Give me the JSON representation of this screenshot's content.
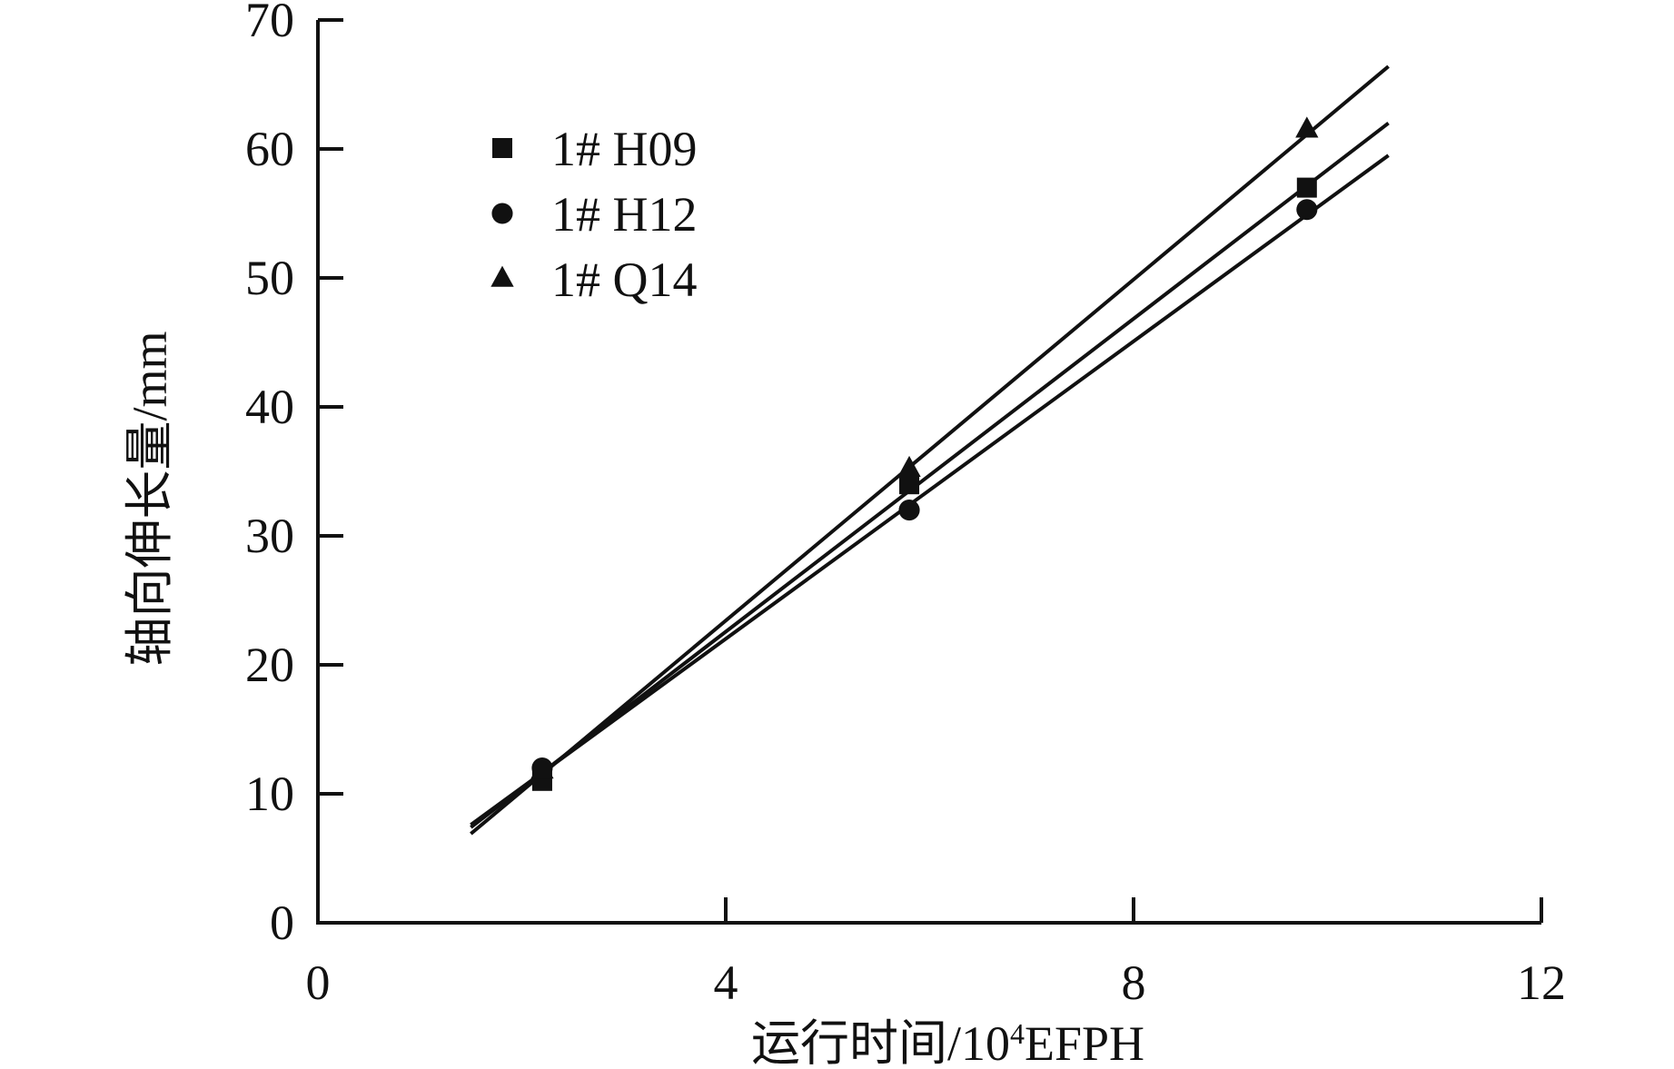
{
  "chart_data": {
    "type": "scatter",
    "xlabel": "运行时间/10",
    "xlabel_sup": "4",
    "xlabel_suffix": "EFPH",
    "ylabel": "轴向伸长量/mm",
    "xlim": [
      0,
      12
    ],
    "ylim": [
      0,
      70
    ],
    "x_ticks": [
      0,
      4,
      8,
      12
    ],
    "y_ticks": [
      0,
      10,
      20,
      30,
      40,
      50,
      60,
      70
    ],
    "x_tick_labels": [
      "0",
      "4",
      "8",
      "12"
    ],
    "y_tick_labels": [
      "0",
      "10",
      "20",
      "30",
      "40",
      "50",
      "60",
      "70"
    ],
    "grid": false,
    "legend_position": "top-left",
    "series": [
      {
        "name": "1# H09",
        "marker": "square",
        "x": [
          2.2,
          5.8,
          9.7
        ],
        "y": [
          11.0,
          34.0,
          57.0
        ],
        "fit": {
          "x": [
            1.5,
            10.5
          ],
          "y": [
            7.4,
            62.0
          ]
        }
      },
      {
        "name": "1# H12",
        "marker": "circle",
        "x": [
          2.2,
          5.8,
          9.7
        ],
        "y": [
          12.0,
          32.0,
          55.3
        ],
        "fit": {
          "x": [
            1.5,
            10.5
          ],
          "y": [
            7.6,
            59.5
          ]
        }
      },
      {
        "name": "1# Q14",
        "marker": "triangle",
        "x": [
          2.2,
          5.8,
          9.7
        ],
        "y": [
          11.8,
          35.2,
          61.5
        ],
        "fit": {
          "x": [
            1.5,
            10.5
          ],
          "y": [
            6.9,
            66.4
          ]
        }
      }
    ]
  }
}
